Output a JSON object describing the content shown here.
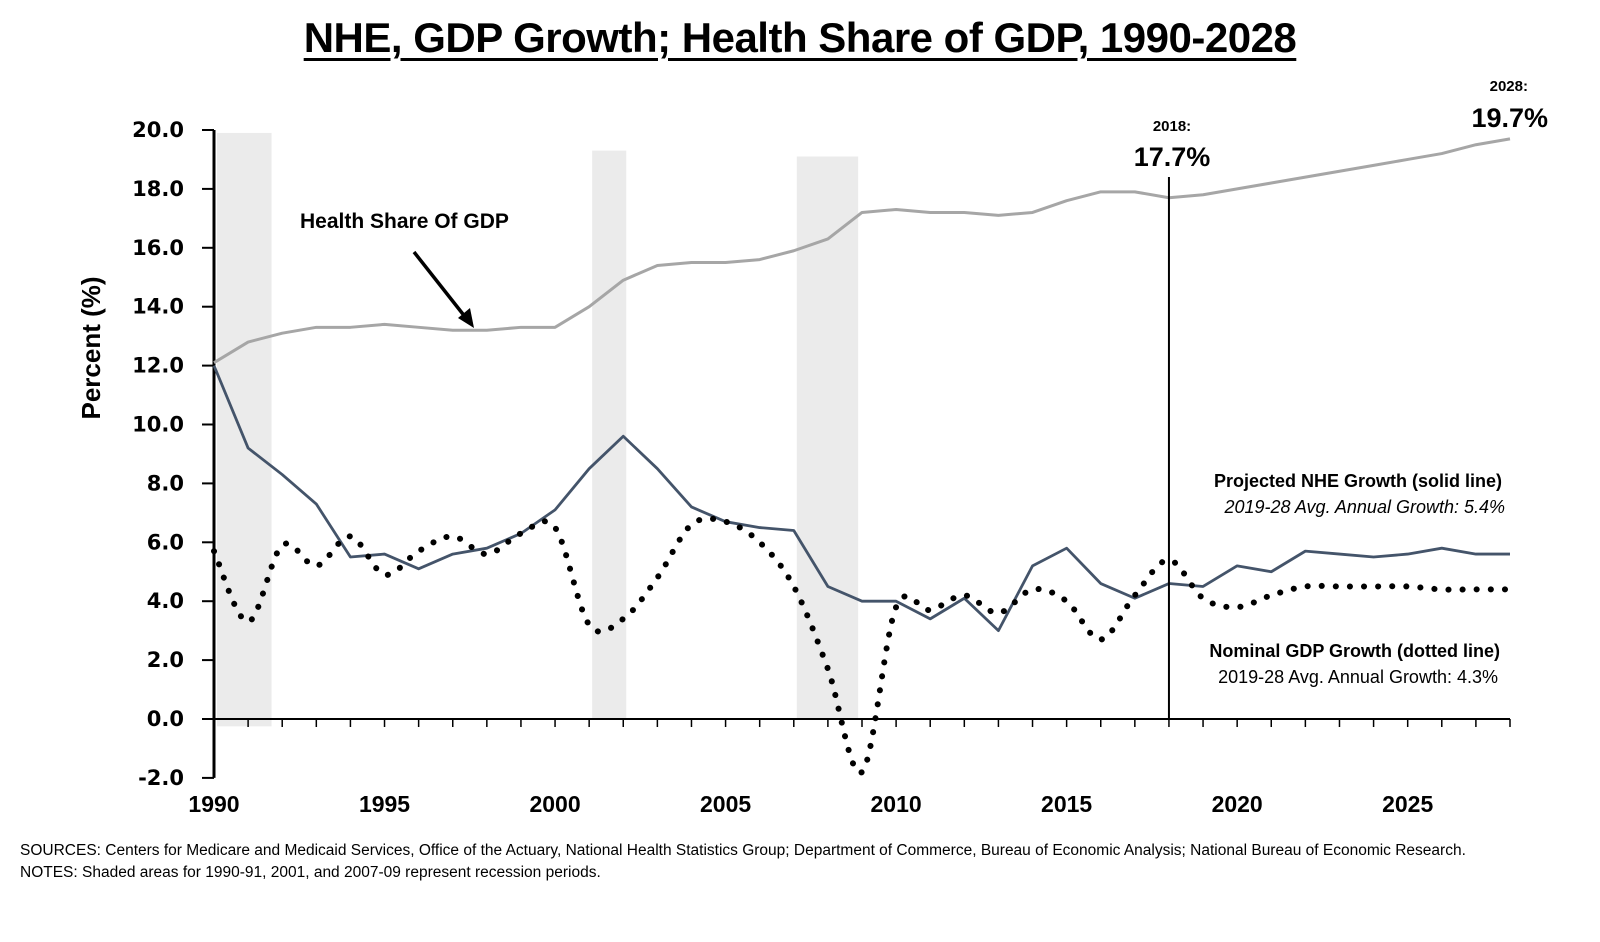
{
  "chart_data": {
    "type": "line",
    "title": "NHE, GDP Growth; Health Share of GDP, 1990-2028",
    "xlabel": "",
    "ylabel": "Percent (%)",
    "ylim": [
      -2.0,
      20.0
    ],
    "xlim": [
      1990,
      2028
    ],
    "y_ticks": [
      "20.0",
      "18.0",
      "16.0",
      "14.0",
      "12.0",
      "10.0",
      "8.0",
      "6.0",
      "4.0",
      "2.0",
      "0.0",
      "-2.0"
    ],
    "y_tick_values": [
      20,
      18,
      16,
      14,
      12,
      10,
      8,
      6,
      4,
      2,
      0,
      -2
    ],
    "x_tick_labels": [
      "1990",
      "1995",
      "2000",
      "2005",
      "2010",
      "2015",
      "2020",
      "2025"
    ],
    "x_tick_values": [
      1990,
      1995,
      2000,
      2005,
      2010,
      2015,
      2020,
      2025
    ],
    "grid": false,
    "x": [
      1990,
      1991,
      1992,
      1993,
      1994,
      1995,
      1996,
      1997,
      1998,
      1999,
      2000,
      2001,
      2002,
      2003,
      2004,
      2005,
      2006,
      2007,
      2008,
      2009,
      2010,
      2011,
      2012,
      2013,
      2014,
      2015,
      2016,
      2017,
      2018,
      2019,
      2020,
      2021,
      2022,
      2023,
      2024,
      2025,
      2026,
      2027,
      2028
    ],
    "series": [
      {
        "name": "Health Share Of GDP",
        "style": "solid",
        "color": "#a6a6a6",
        "values": [
          12.1,
          12.8,
          13.1,
          13.3,
          13.3,
          13.4,
          13.3,
          13.2,
          13.2,
          13.3,
          13.3,
          14.0,
          14.9,
          15.4,
          15.5,
          15.5,
          15.6,
          15.9,
          16.3,
          17.2,
          17.3,
          17.2,
          17.2,
          17.1,
          17.2,
          17.6,
          17.9,
          17.9,
          17.7,
          17.8,
          18.0,
          18.2,
          18.4,
          18.6,
          18.8,
          19.0,
          19.2,
          19.5,
          19.7
        ]
      },
      {
        "name": "NHE Growth (solid line)",
        "style": "solid",
        "color": "#44546a",
        "values": [
          12.0,
          9.2,
          8.3,
          7.3,
          5.5,
          5.6,
          5.1,
          5.6,
          5.8,
          6.3,
          7.1,
          8.5,
          9.6,
          8.5,
          7.2,
          6.7,
          6.5,
          6.4,
          4.5,
          4.0,
          4.0,
          3.4,
          4.1,
          3.0,
          5.2,
          5.8,
          4.6,
          4.1,
          4.6,
          4.5,
          5.2,
          5.0,
          5.7,
          5.6,
          5.5,
          5.6,
          5.8,
          5.6,
          5.6
        ]
      },
      {
        "name": "Nominal GDP Growth (dotted line)",
        "style": "dotted",
        "color": "#000000",
        "values": [
          5.7,
          3.3,
          5.9,
          5.2,
          6.2,
          4.9,
          5.7,
          6.2,
          5.6,
          6.3,
          6.5,
          3.2,
          3.4,
          4.8,
          6.6,
          6.7,
          6.0,
          4.5,
          1.7,
          -1.8,
          3.8,
          3.7,
          4.2,
          3.6,
          4.4,
          4.0,
          2.7,
          4.2,
          5.4,
          4.1,
          3.8,
          4.2,
          4.5,
          4.5,
          4.5,
          4.5,
          4.4,
          4.4,
          4.4
        ]
      }
    ],
    "recession_periods": [
      {
        "start": 1990,
        "end": 1991.6,
        "top": 19.9
      },
      {
        "start": 2001,
        "end": 2002,
        "top": 19.3
      },
      {
        "start": 2007,
        "end": 2008.8,
        "top": 19.1
      }
    ],
    "vertical_marker": {
      "x": 2018
    },
    "annotations": {
      "health_share_label": "Health Share Of GDP",
      "marker_2018_year": "2018:",
      "marker_2018_value": "17.7%",
      "marker_2028_year": "2028:",
      "marker_2028_value": "19.7%",
      "nhe_label": "Projected NHE Growth (solid line)",
      "nhe_avg": "2019-28 Avg. Annual Growth: 5.4%",
      "gdp_label": "Nominal GDP Growth (dotted line)",
      "gdp_avg": "2019-28 Avg. Annual Growth: 4.3%"
    },
    "legend": "none"
  },
  "footnotes": {
    "sources": "SOURCES: Centers for Medicare and Medicaid Services, Office of the Actuary, National Health Statistics Group; Department of Commerce, Bureau of Economic Analysis; National Bureau of Economic Research.",
    "notes": "NOTES: Shaded areas for 1990-91, 2001, and 2007-09 represent recession periods."
  }
}
